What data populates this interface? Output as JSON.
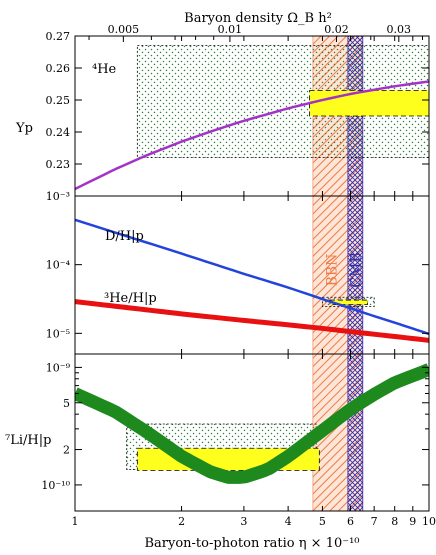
{
  "chart_data": {
    "type": "line",
    "top_axis": {
      "title": "Baryon density Ω_B h²",
      "ticks": [
        {
          "value": 0.005,
          "label": "0.005"
        },
        {
          "value": 0.01,
          "label": "0.01"
        },
        {
          "value": 0.02,
          "label": "0.02"
        },
        {
          "value": 0.03,
          "label": "0.03"
        }
      ],
      "minor_ticks": [
        0.004,
        0.006,
        0.007,
        0.008,
        0.009,
        0.025,
        0.035
      ]
    },
    "x_axis": {
      "title": "Baryon-to-photon ratio η × 10⁻¹⁰",
      "scale": "log",
      "range": [
        1,
        10
      ],
      "ticks": [
        {
          "value": 1,
          "label": "1"
        },
        {
          "value": 2,
          "label": "2"
        },
        {
          "value": 3,
          "label": "3"
        },
        {
          "value": 4,
          "label": "4"
        },
        {
          "value": 5,
          "label": "5"
        },
        {
          "value": 6,
          "label": "6"
        },
        {
          "value": 7,
          "label": "7"
        },
        {
          "value": 8,
          "label": "8"
        },
        {
          "value": 9,
          "label": "9"
        },
        {
          "value": 10,
          "label": "10"
        }
      ]
    },
    "bands": {
      "bbn": {
        "label": "BBN",
        "range": [
          4.7,
          6.5
        ],
        "color": "#f2956a"
      },
      "cmb": {
        "label": "CMB",
        "range": [
          5.9,
          6.5
        ],
        "color": "#2b2bb0"
      }
    },
    "panels": [
      {
        "id": "he4",
        "ylabel": "Yp",
        "panel_label": "⁴He",
        "y_scale": "linear",
        "ylim": [
          0.22,
          0.27
        ],
        "ticks": [
          {
            "value": 0.23,
            "label": "0.23"
          },
          {
            "value": 0.24,
            "label": "0.24"
          },
          {
            "value": 0.25,
            "label": "0.25"
          },
          {
            "value": 0.26,
            "label": "0.26"
          },
          {
            "value": 0.27,
            "label": "0.27"
          }
        ],
        "series": [
          {
            "color": "#a333c8",
            "width": 2.5,
            "x": [
              1,
              1.3,
              1.6,
              2,
              2.5,
              3,
              4,
              5,
              6,
              7,
              8,
              10
            ],
            "y": [
              0.2222,
              0.2284,
              0.2328,
              0.237,
              0.2407,
              0.2435,
              0.2474,
              0.25,
              0.2519,
              0.2532,
              0.2543,
              0.2558
            ]
          }
        ],
        "observation_boxes": [
          {
            "style": "dotted",
            "x": [
              1.5,
              10
            ],
            "y": [
              0.232,
              0.267
            ]
          },
          {
            "style": "solid",
            "x": [
              4.6,
              10
            ],
            "y": [
              0.245,
              0.253
            ]
          }
        ]
      },
      {
        "id": "dh",
        "ylabel": "",
        "y_scale": "log",
        "ylim": [
          5e-06,
          0.001
        ],
        "ticks": [
          {
            "value": 0.001,
            "label": "10⁻³"
          },
          {
            "value": 0.0001,
            "label": "10⁻⁴"
          },
          {
            "value": 1e-05,
            "label": "10⁻⁵"
          }
        ],
        "series": [
          {
            "name": "D/H|p",
            "color": "#2244dd",
            "width": 2.5,
            "x": [
              1,
              2,
              3,
              4,
              5,
              6,
              7,
              8,
              10
            ],
            "y": [
              0.00045,
              0.000145,
              7.35e-05,
              4.65e-05,
              3.15e-05,
              2.32e-05,
              1.78e-05,
              1.43e-05,
              9.8e-06
            ]
          },
          {
            "name": "³He/H|p",
            "color": "#e81010",
            "width": 5,
            "x": [
              1,
              2,
              3,
              4,
              5,
              6,
              7,
              8,
              10
            ],
            "y": [
              2.9e-05,
              1.92e-05,
              1.54e-05,
              1.33e-05,
              1.18e-05,
              1.06e-05,
              9.7e-06,
              9e-06,
              7.9e-06
            ]
          }
        ],
        "observation_boxes": [
          {
            "style": "dotted",
            "x": [
              5.0,
              7.0
            ],
            "y": [
              2.45e-05,
              3.35e-05
            ]
          },
          {
            "style": "solid",
            "x": [
              5.25,
              6.7
            ],
            "y": [
              2.62e-05,
              3.05e-05
            ]
          }
        ]
      },
      {
        "id": "li7",
        "ylabel": "⁷Li/H|p",
        "y_scale": "log",
        "ylim": [
          6e-11,
          1.3e-09
        ],
        "ticks": [
          {
            "value": 1e-09,
            "label": "10⁻⁹"
          },
          {
            "value": 5e-10,
            "label": "5"
          },
          {
            "value": 2e-10,
            "label": "2"
          },
          {
            "value": 1e-10,
            "label": "10⁻¹⁰"
          }
        ],
        "minor_ticks": [
          3e-10,
          4e-10,
          6e-10,
          7e-10,
          8e-10,
          9e-10
        ],
        "series": [
          {
            "color": "#1e8a1e",
            "width": 13,
            "x": [
              1,
              1.3,
              1.6,
              2,
              2.4,
              2.7,
              3,
              3.5,
              4,
              5,
              6,
              7,
              8,
              10
            ],
            "y": [
              6e-10,
              4.2e-10,
              2.8e-10,
              1.75e-10,
              1.3e-10,
              1.16e-10,
              1.16e-10,
              1.35e-10,
              1.75e-10,
              2.9e-10,
              4.4e-10,
              5.9e-10,
              7.4e-10,
              9.6e-10
            ]
          }
        ],
        "observation_boxes": [
          {
            "style": "dotted",
            "x": [
              1.4,
              4.8
            ],
            "y": [
              1.35e-10,
              3.3e-10
            ]
          },
          {
            "style": "solid",
            "x": [
              1.5,
              4.9
            ],
            "y": [
              1.33e-10,
              2.05e-10
            ]
          }
        ]
      }
    ]
  }
}
